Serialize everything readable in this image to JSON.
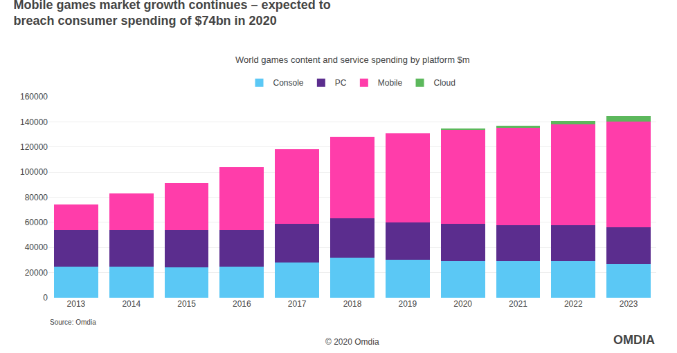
{
  "chart_data": {
    "type": "bar",
    "stacked": true,
    "title": "Mobile games market growth continues – expected to\nbreach consumer spending of $74bn in 2020",
    "subtitle": "World games content and service spending by platform $m",
    "annotations": [
      "Source: Omdia",
      "© 2020 Omdia",
      "OMDIA"
    ],
    "categories": [
      "2013",
      "2014",
      "2015",
      "2016",
      "2017",
      "2018",
      "2019",
      "2020",
      "2021",
      "2022",
      "2023"
    ],
    "series": [
      {
        "name": "Console",
        "color": "#5BC8F5",
        "values": [
          25000,
          25000,
          24000,
          25000,
          28000,
          32000,
          30000,
          29000,
          29000,
          29000,
          27000
        ]
      },
      {
        "name": "PC",
        "color": "#5B2D8E",
        "values": [
          29000,
          29000,
          30000,
          29000,
          31000,
          31000,
          30000,
          30000,
          29000,
          29000,
          29000
        ]
      },
      {
        "name": "Mobile",
        "color": "#FF3DAA",
        "values": [
          20000,
          29000,
          37000,
          50000,
          59000,
          65000,
          71000,
          75000,
          77000,
          80000,
          84000
        ]
      },
      {
        "name": "Cloud",
        "color": "#5CB85C",
        "values": [
          0,
          0,
          0,
          0,
          0,
          0,
          0,
          500,
          2000,
          3000,
          4500
        ]
      }
    ],
    "ylim": [
      0,
      160000
    ],
    "yticks": [
      0,
      20000,
      40000,
      60000,
      80000,
      100000,
      120000,
      140000,
      160000
    ],
    "grid": true,
    "legend": "upper center"
  }
}
